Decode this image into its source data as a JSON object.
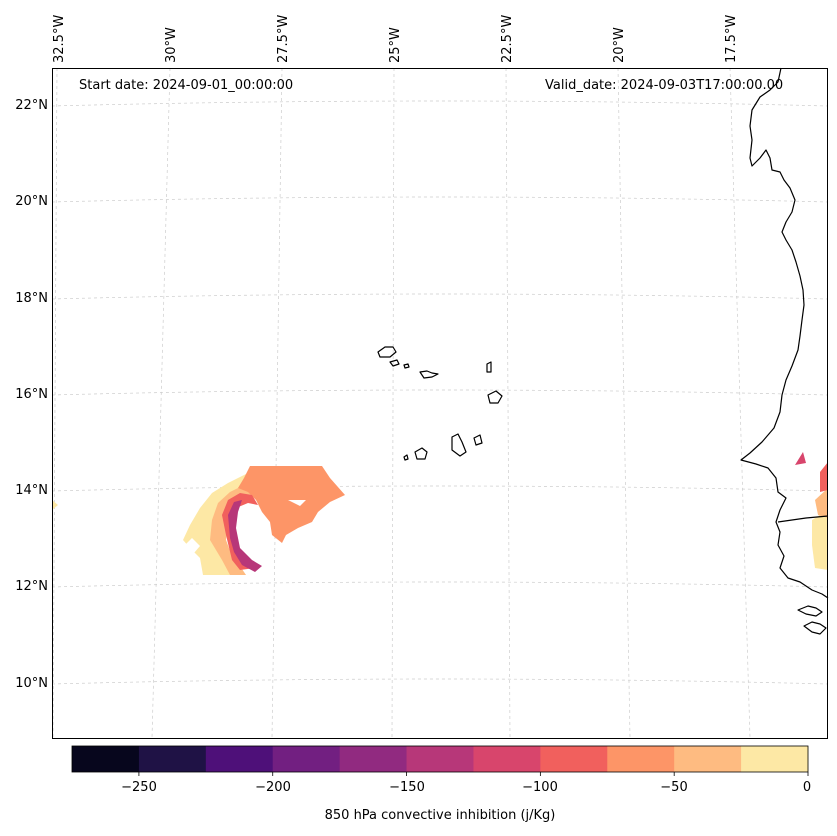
{
  "map": {
    "start_label": "Start date: 2024-09-01_00:00:00",
    "valid_label": "Valid_date: 2024-09-03T17:00:00.00",
    "lon_labels": [
      "32.5°W",
      "30°W",
      "27.5°W",
      "25°W",
      "22.5°W",
      "20°W",
      "17.5°W"
    ],
    "lat_labels": [
      "22°N",
      "20°N",
      "18°N",
      "16°N",
      "14°N",
      "12°N",
      "10°N"
    ],
    "field": "850 hPa convective inhibition",
    "units": "j/Kg"
  },
  "colorbar": {
    "label": "850 hPa convective inhibition (j/Kg)",
    "ticks": [
      "−250",
      "−200",
      "−150",
      "−100",
      "−50",
      "0"
    ],
    "levels": [
      -275,
      -250,
      -225,
      -200,
      -175,
      -150,
      -125,
      -100,
      -75,
      -50,
      -25,
      0
    ],
    "colors": [
      "#07061d",
      "#1f1245",
      "#4e1079",
      "#721f81",
      "#912a80",
      "#b73779",
      "#d8456c",
      "#f1605d",
      "#fd9567",
      "#febb81",
      "#fde8a5"
    ]
  },
  "colors": {
    "coastline": "#000000",
    "gridline": "#cccccc",
    "frame": "#000000"
  }
}
